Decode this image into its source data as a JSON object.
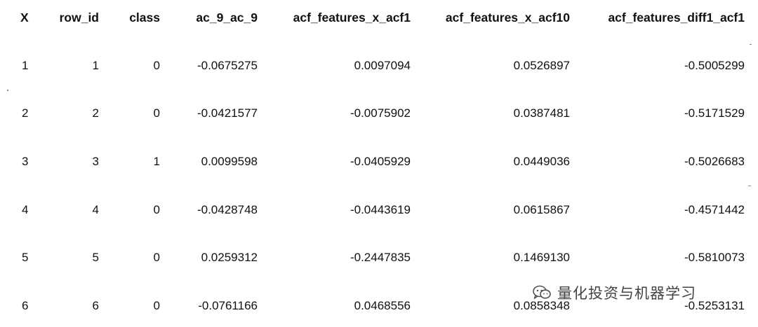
{
  "table": {
    "columns": [
      "X",
      "row_id",
      "class",
      "ac_9_ac_9",
      "acf_features_x_acf1",
      "acf_features_x_acf10",
      "acf_features_diff1_acf1"
    ],
    "rows": [
      [
        "1",
        "1",
        "0",
        "-0.0675275",
        "0.0097094",
        "0.0526897",
        "-0.5005299"
      ],
      [
        "2",
        "2",
        "0",
        "-0.0421577",
        "-0.0075902",
        "0.0387481",
        "-0.5171529"
      ],
      [
        "3",
        "3",
        "1",
        "0.0099598",
        "-0.0405929",
        "0.0449036",
        "-0.5026683"
      ],
      [
        "4",
        "4",
        "0",
        "-0.0428748",
        "-0.0443619",
        "0.0615867",
        "-0.4571442"
      ],
      [
        "5",
        "5",
        "0",
        "0.0259312",
        "-0.2447835",
        "0.1469130",
        "-0.5810073"
      ],
      [
        "6",
        "6",
        "0",
        "-0.0761166",
        "0.0468556",
        "0.0858348",
        "-0.5253131"
      ]
    ]
  },
  "watermark": {
    "text": "量化投资与机器学习",
    "icon": "wechat-icon"
  }
}
